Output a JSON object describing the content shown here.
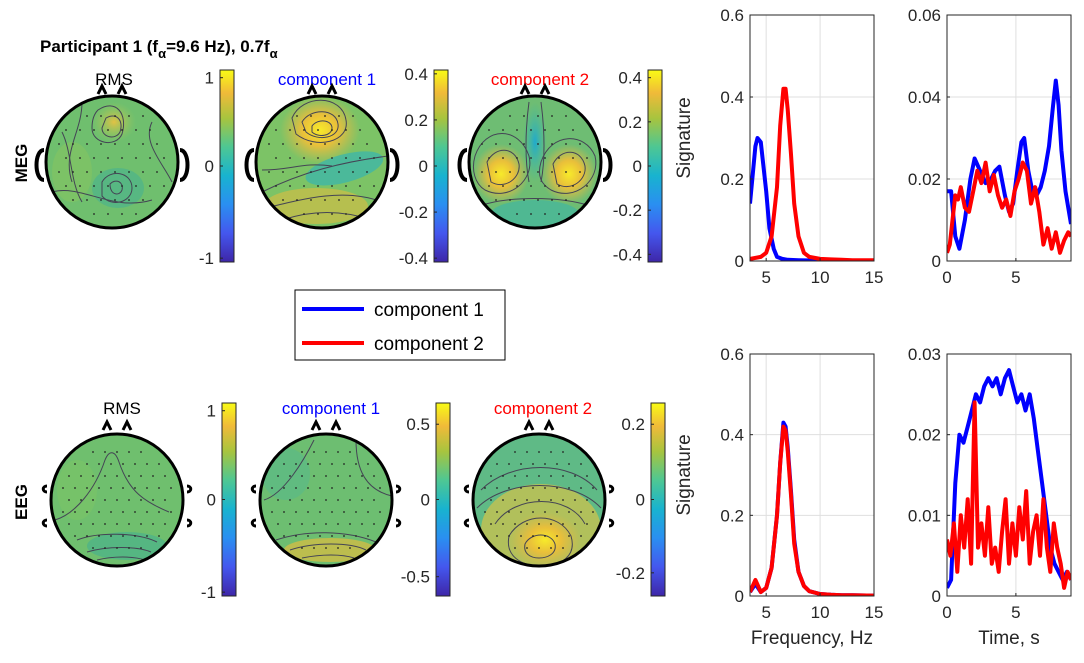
{
  "figure": {
    "title_prefix": "Participant 1 (f",
    "title_sub_a": "α",
    "title_mid": "=9.6 Hz), 0.7f",
    "title_sub_b": "α",
    "row_labels": [
      "MEG",
      "EEG"
    ],
    "topo_titles": [
      {
        "text": "RMS",
        "color": "#000000"
      },
      {
        "text": "component 1",
        "color": "#0000ff"
      },
      {
        "text": "component 2",
        "color": "#ff0000"
      }
    ],
    "legend": [
      "component 1",
      "component 2"
    ]
  },
  "colors": {
    "component1": "#0000ff",
    "component2": "#ff0000",
    "axis": "#262626",
    "grid": "#dfdfdf"
  },
  "colorbars": {
    "meg": [
      {
        "ticks": [
          "1",
          "0",
          "-1"
        ]
      },
      {
        "ticks": [
          "0.4",
          "0.2",
          "0",
          "-0.2",
          "-0.4"
        ]
      },
      {
        "ticks": [
          "0.4",
          "0.2",
          "0",
          "-0.2",
          "-0.4"
        ]
      }
    ],
    "eeg": [
      {
        "ticks": [
          "1",
          "0",
          "-1"
        ]
      },
      {
        "ticks": [
          "0.5",
          "0",
          "-0.5"
        ]
      },
      {
        "ticks": [
          "0.2",
          "0",
          "-0.2"
        ]
      }
    ]
  },
  "chart_data": [
    {
      "id": "meg-spectrum",
      "type": "line",
      "xlabel": "",
      "ylabel": "Signature",
      "xlim": [
        3.5,
        15
      ],
      "ylim": [
        0,
        0.6
      ],
      "xticks": [
        "5",
        "10",
        "15"
      ],
      "yticks": [
        "0",
        "0.2",
        "0.4",
        "0.6"
      ],
      "grid": true,
      "series": [
        {
          "name": "component 1",
          "x": [
            3.5,
            4,
            4.2,
            4.5,
            5,
            5.3,
            5.7,
            6,
            6.5,
            7,
            8,
            10,
            15
          ],
          "y": [
            0.14,
            0.28,
            0.3,
            0.29,
            0.17,
            0.08,
            0.03,
            0.01,
            0.005,
            0.003,
            0.002,
            0.001,
            0.001
          ]
        },
        {
          "name": "component 2",
          "x": [
            3.5,
            4.5,
            5,
            5.5,
            6,
            6.3,
            6.6,
            6.8,
            7,
            7.3,
            7.6,
            8,
            8.5,
            9,
            10,
            11,
            12,
            13,
            15
          ],
          "y": [
            0.005,
            0.01,
            0.02,
            0.06,
            0.18,
            0.33,
            0.42,
            0.42,
            0.37,
            0.26,
            0.14,
            0.06,
            0.02,
            0.01,
            0.005,
            0.004,
            0.003,
            0.002,
            0.002
          ]
        }
      ]
    },
    {
      "id": "meg-timecourse",
      "type": "line",
      "xlabel": "",
      "ylabel": "",
      "xlim": [
        0,
        9
      ],
      "ylim": [
        0,
        0.06
      ],
      "xticks": [
        "0",
        "5"
      ],
      "yticks": [
        "0",
        "0.02",
        "0.04",
        "0.06"
      ],
      "grid": true,
      "series": [
        {
          "name": "component 1",
          "x": [
            0,
            0.3,
            0.6,
            0.9,
            1.3,
            1.7,
            2,
            2.4,
            2.8,
            3.2,
            3.5,
            3.8,
            4.2,
            4.5,
            4.8,
            5.1,
            5.4,
            5.6,
            5.9,
            6.2,
            6.5,
            6.8,
            7.1,
            7.4,
            7.7,
            7.9,
            8.1,
            8.3,
            8.6,
            9
          ],
          "y": [
            0.017,
            0.017,
            0.006,
            0.003,
            0.01,
            0.02,
            0.025,
            0.022,
            0.019,
            0.02,
            0.022,
            0.023,
            0.016,
            0.012,
            0.014,
            0.022,
            0.029,
            0.03,
            0.022,
            0.017,
            0.016,
            0.018,
            0.022,
            0.028,
            0.038,
            0.044,
            0.038,
            0.027,
            0.017,
            0.009
          ]
        },
        {
          "name": "component 2",
          "x": [
            0,
            0.2,
            0.4,
            0.6,
            0.8,
            1,
            1.3,
            1.6,
            1.9,
            2.2,
            2.5,
            2.8,
            3.1,
            3.4,
            3.7,
            4,
            4.3,
            4.6,
            4.9,
            5.2,
            5.5,
            5.8,
            6.1,
            6.4,
            6.7,
            7,
            7.3,
            7.6,
            7.9,
            8.2,
            8.5,
            8.8,
            9
          ],
          "y": [
            0.002,
            0.004,
            0.01,
            0.016,
            0.015,
            0.018,
            0.013,
            0.012,
            0.017,
            0.022,
            0.019,
            0.024,
            0.017,
            0.021,
            0.016,
            0.013,
            0.015,
            0.011,
            0.017,
            0.02,
            0.024,
            0.022,
            0.014,
            0.018,
            0.012,
            0.004,
            0.008,
            0.003,
            0.007,
            0.002,
            0.005,
            0.007,
            0.006
          ]
        }
      ]
    },
    {
      "id": "eeg-spectrum",
      "type": "line",
      "xlabel": "Frequency, Hz",
      "ylabel": "Signature",
      "xlim": [
        3.5,
        15
      ],
      "ylim": [
        0,
        0.6
      ],
      "xticks": [
        "5",
        "10",
        "15"
      ],
      "yticks": [
        "0",
        "0.2",
        "0.4",
        "0.6"
      ],
      "grid": true,
      "series": [
        {
          "name": "component 1",
          "x": [
            3.5,
            4,
            4.5,
            5,
            5.5,
            6,
            6.3,
            6.6,
            6.8,
            7,
            7.3,
            7.6,
            8,
            8.5,
            9,
            10,
            11,
            12,
            13,
            15
          ],
          "y": [
            0.01,
            0.03,
            0.01,
            0.02,
            0.07,
            0.2,
            0.33,
            0.43,
            0.42,
            0.37,
            0.26,
            0.14,
            0.06,
            0.025,
            0.012,
            0.005,
            0.003,
            0.002,
            0.002,
            0.001
          ]
        },
        {
          "name": "component 2",
          "x": [
            3.5,
            4,
            4.5,
            5,
            5.5,
            6,
            6.3,
            6.6,
            6.8,
            7,
            7.3,
            7.6,
            8,
            8.5,
            9,
            10,
            11,
            12,
            13,
            15
          ],
          "y": [
            0.01,
            0.04,
            0.01,
            0.02,
            0.07,
            0.2,
            0.33,
            0.42,
            0.41,
            0.36,
            0.25,
            0.13,
            0.06,
            0.025,
            0.012,
            0.005,
            0.003,
            0.002,
            0.002,
            0.001
          ]
        }
      ]
    },
    {
      "id": "eeg-timecourse",
      "type": "line",
      "xlabel": "Time, s",
      "ylabel": "",
      "xlim": [
        0,
        9
      ],
      "ylim": [
        0,
        0.03
      ],
      "xticks": [
        "0",
        "5"
      ],
      "yticks": [
        "0",
        "0.01",
        "0.02",
        "0.03"
      ],
      "grid": true,
      "series": [
        {
          "name": "component 1",
          "x": [
            0,
            0.3,
            0.6,
            0.9,
            1.2,
            1.5,
            1.8,
            2.1,
            2.4,
            2.7,
            3,
            3.3,
            3.6,
            3.9,
            4.2,
            4.5,
            4.8,
            5.1,
            5.4,
            5.7,
            6,
            6.3,
            6.6,
            6.9,
            7.2,
            7.5,
            7.8,
            8.1,
            8.4,
            8.7,
            9
          ],
          "y": [
            0.001,
            0.002,
            0.014,
            0.02,
            0.019,
            0.021,
            0.023,
            0.025,
            0.024,
            0.026,
            0.027,
            0.026,
            0.027,
            0.025,
            0.027,
            0.028,
            0.026,
            0.024,
            0.025,
            0.023,
            0.025,
            0.022,
            0.018,
            0.014,
            0.01,
            0.006,
            0.004,
            0.003,
            0.002,
            0.003,
            0.002
          ]
        },
        {
          "name": "component 2",
          "x": [
            0,
            0.25,
            0.5,
            0.75,
            1,
            1.25,
            1.5,
            1.75,
            2,
            2.25,
            2.5,
            2.75,
            3,
            3.25,
            3.5,
            3.75,
            4,
            4.25,
            4.5,
            4.75,
            5,
            5.25,
            5.5,
            5.75,
            6,
            6.25,
            6.5,
            6.75,
            7,
            7.25,
            7.5,
            7.75,
            8,
            8.25,
            8.5,
            8.75,
            9
          ],
          "y": [
            0.007,
            0.005,
            0.009,
            0.003,
            0.01,
            0.006,
            0.012,
            0.004,
            0.024,
            0.006,
            0.009,
            0.005,
            0.011,
            0.004,
            0.006,
            0.003,
            0.008,
            0.012,
            0.004,
            0.009,
            0.005,
            0.011,
            0.007,
            0.013,
            0.004,
            0.008,
            0.01,
            0.005,
            0.012,
            0.006,
            0.003,
            0.009,
            0.006,
            0.004,
            0.001,
            0.003,
            0.002
          ]
        }
      ]
    }
  ]
}
